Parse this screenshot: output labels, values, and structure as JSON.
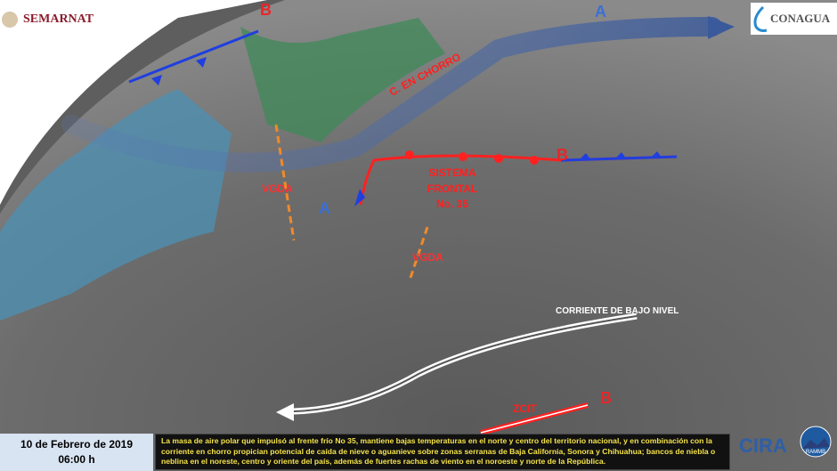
{
  "logos": {
    "left": "SEMARNAT",
    "right": "CONAGUA",
    "bottom_right": [
      "CIRA",
      "RAMMB"
    ]
  },
  "labels": {
    "pressure": [
      {
        "text": "B",
        "color": "#e8262a"
      },
      {
        "text": "A",
        "color": "#3a6fd8"
      },
      {
        "text": "B",
        "color": "#e8262a"
      },
      {
        "text": "A",
        "color": "#3a6fd8"
      },
      {
        "text": "B",
        "color": "#e8262a"
      }
    ],
    "jet": "C. EN CHORRO",
    "front": [
      "SISTEMA",
      "FRONTAL",
      "No. 35"
    ],
    "vgda1": "VGDA",
    "vgda2": "VGDA",
    "low_level": "CORRIENTE DE BAJO NIVEL",
    "zcit": "ZCIT"
  },
  "date": "10 de Febrero de 2019",
  "time": "06:00 h",
  "description": "La masa de aire polar que impulsó al frente frío No 35, mantiene bajas temperaturas en el norte y centro del territorio nacional, y en combinación con la corriente en chorro propician potencial de caída de nieve o aguanieve sobre zonas serranas de Baja California, Sonora y Chihuahua; bancos de niebla o neblina en el noreste, centro y oriente del país, además de fuertes rachas de viento en el noroeste y norte de la República.",
  "colors": {
    "cold_front": "#1f3fe0",
    "warm_front": "#ff2020",
    "text_box": "#f5e34a"
  }
}
